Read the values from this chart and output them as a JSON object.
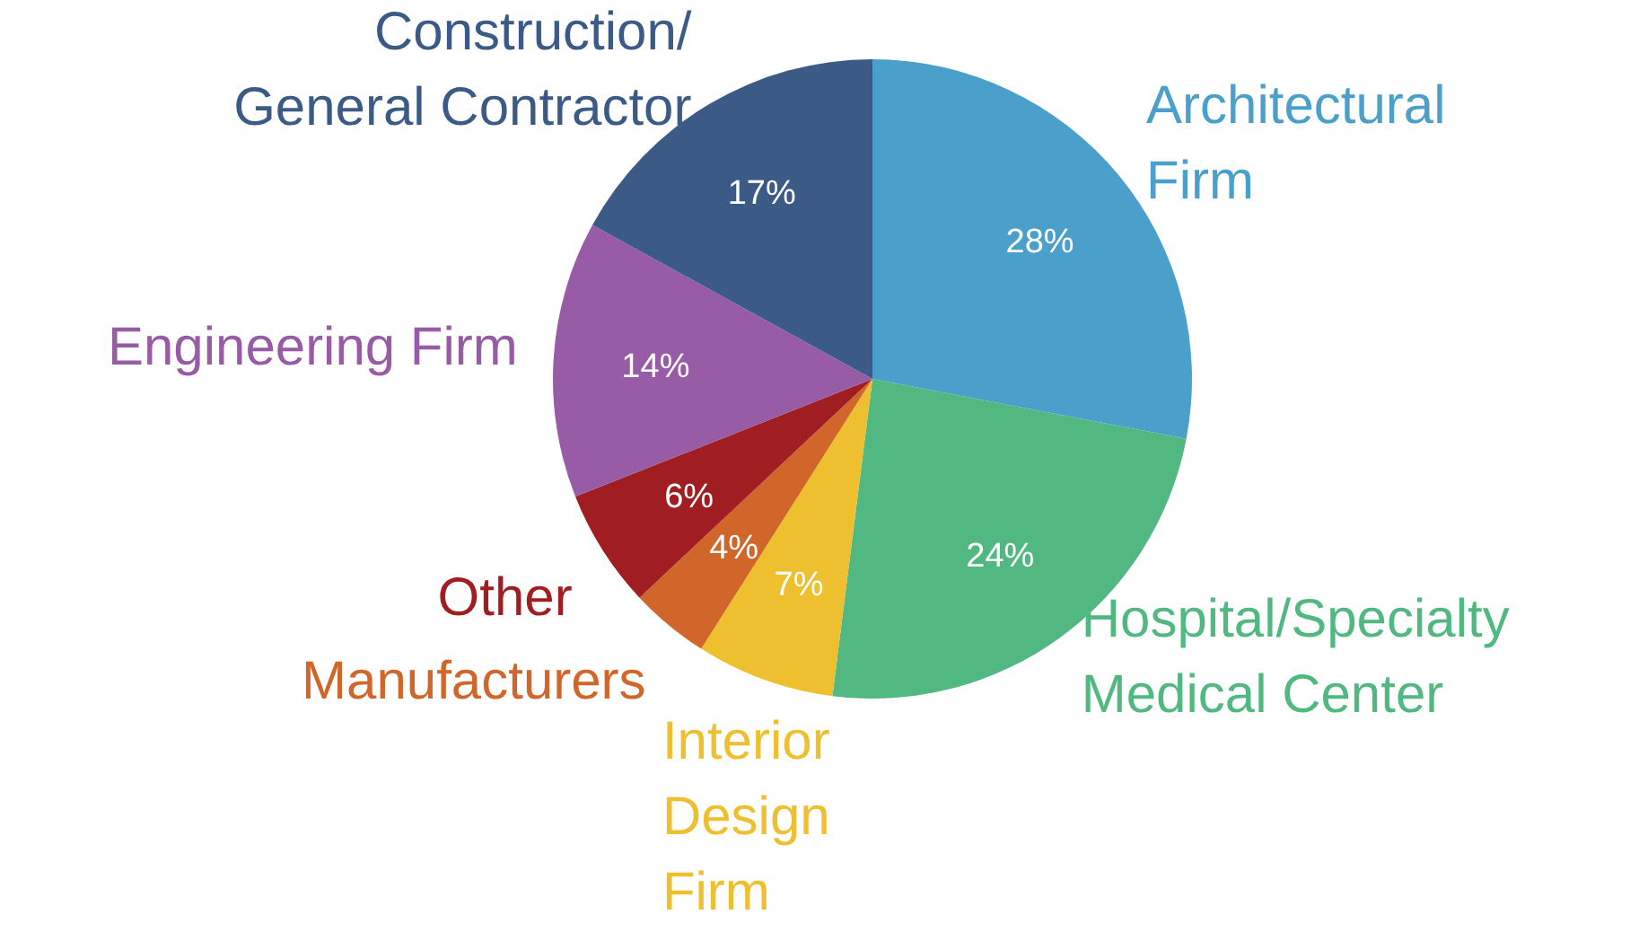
{
  "chart_data": {
    "type": "pie",
    "categories": [
      "Architectural\nFirm",
      "Hospital/Specialty\nMedical Center",
      "Interior\nDesign\nFirm",
      "Manufacturers",
      "Other",
      "Engineering Firm",
      "Construction/\nGeneral Contractor"
    ],
    "values": [
      28,
      24,
      7,
      4,
      6,
      14,
      17
    ],
    "colors": [
      "#4a9fcb",
      "#52b882",
      "#eebf2f",
      "#d1662a",
      "#a01e22",
      "#985ca6",
      "#3b5a86"
    ],
    "value_labels": [
      "28%",
      "24%",
      "7%",
      "4%",
      "6%",
      "14%",
      "17%"
    ]
  }
}
